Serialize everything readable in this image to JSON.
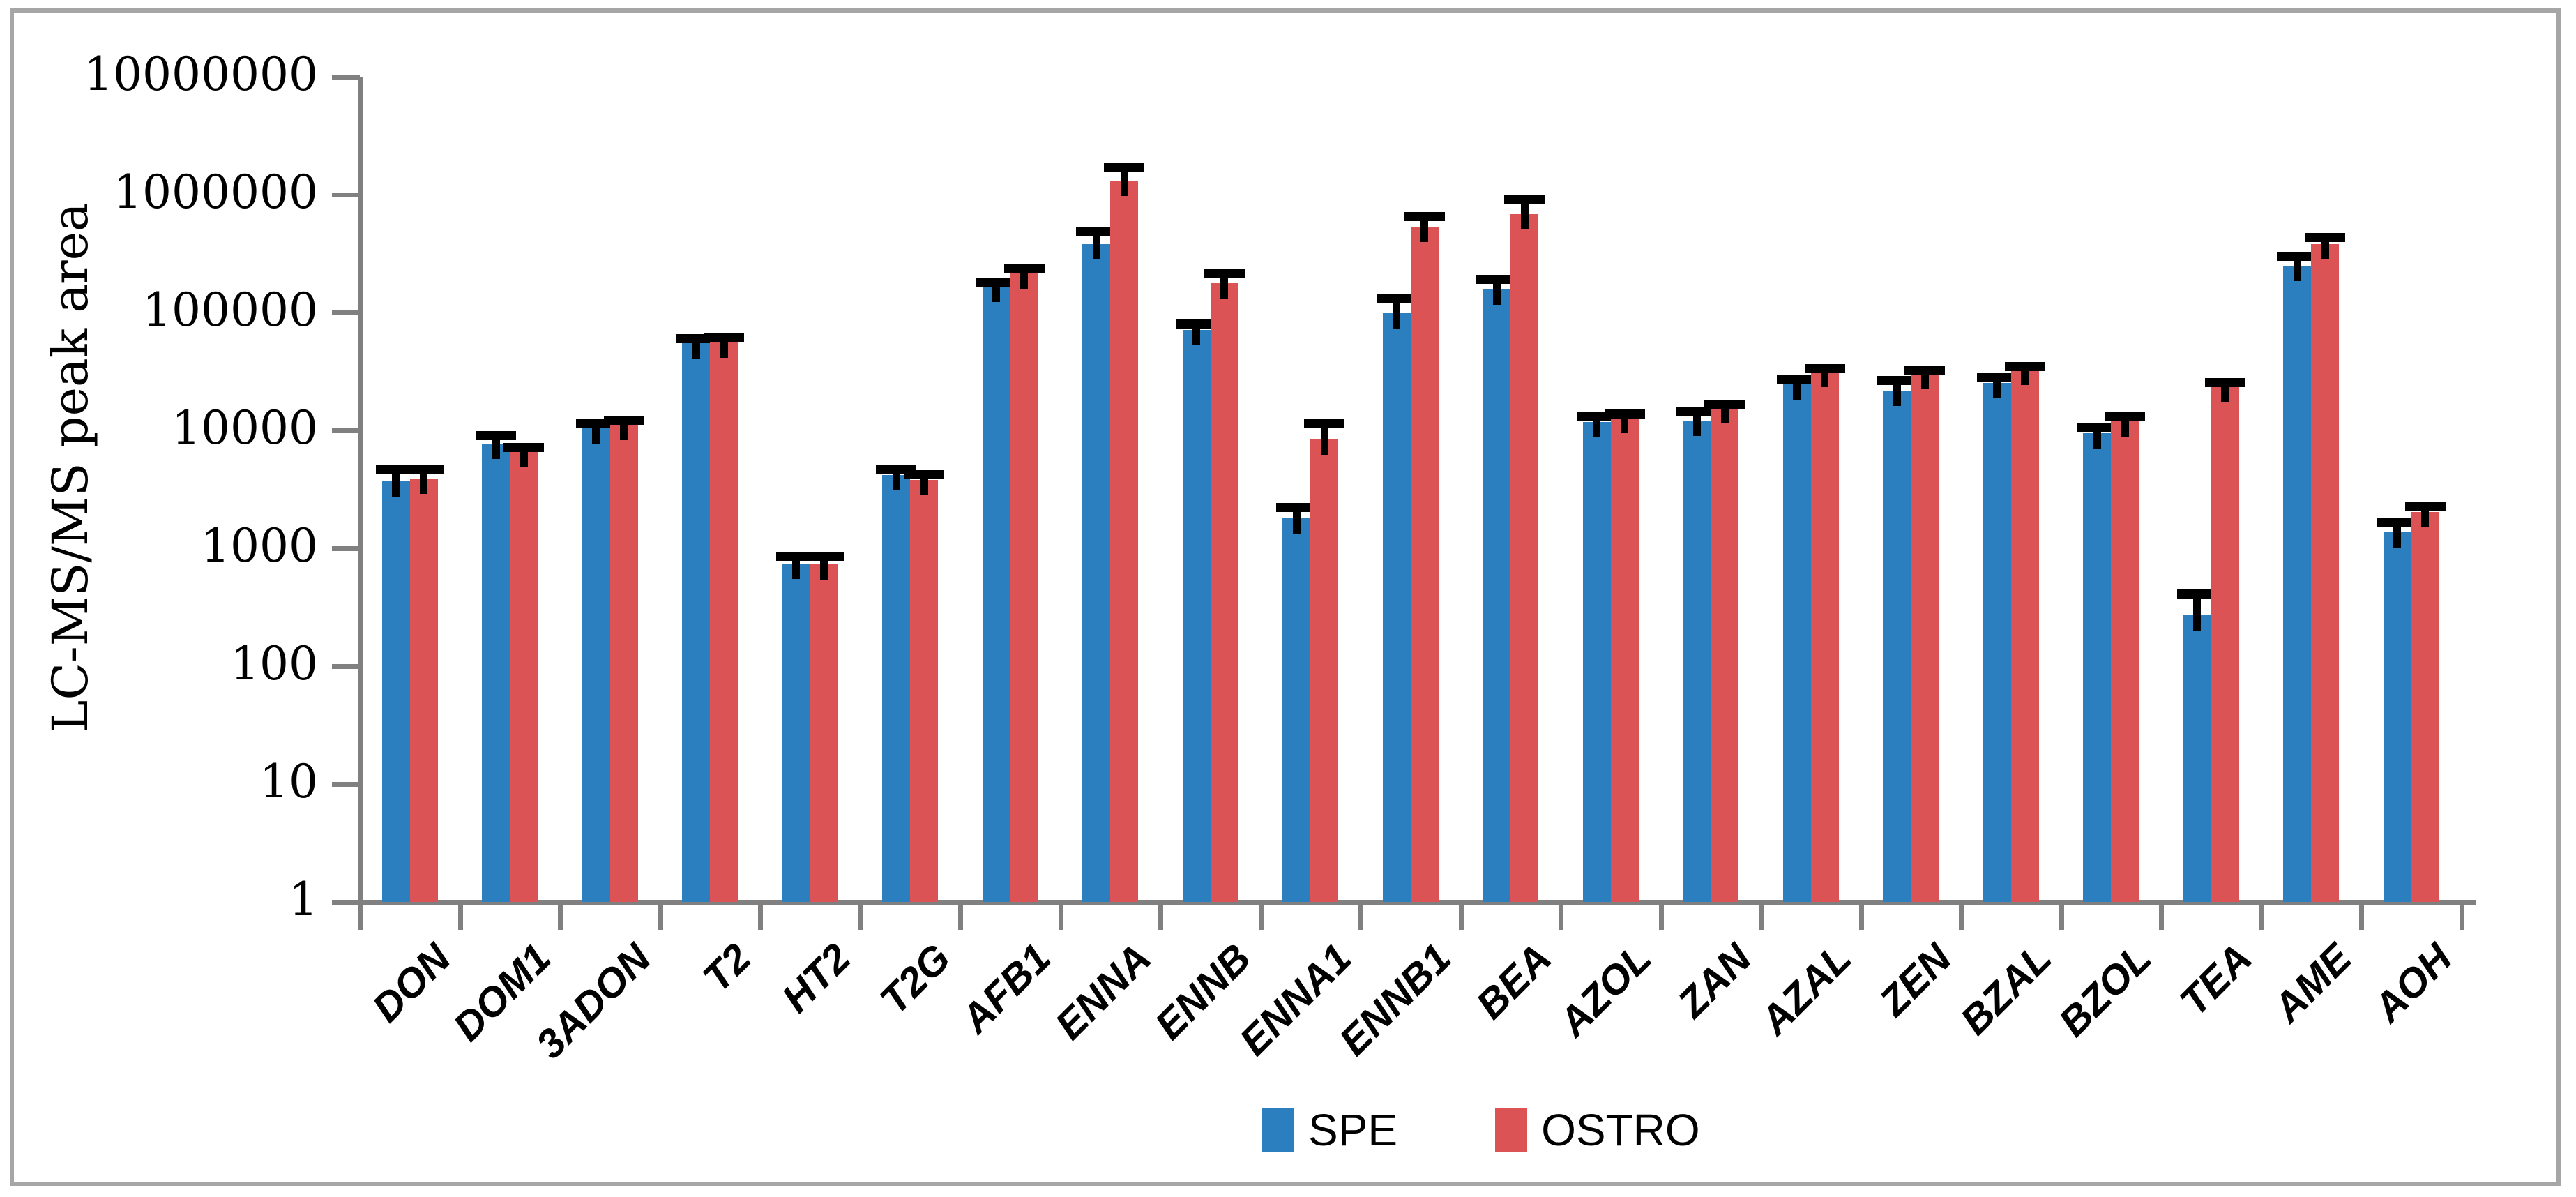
{
  "figure": {
    "background": "#ffffff",
    "border_color": "#a6a6a6",
    "axis_color": "#808080"
  },
  "chart_data": {
    "type": "bar",
    "title": "",
    "xlabel": "",
    "ylabel": "LC-MS/MS peak area",
    "yscale": "log",
    "ylim": [
      1,
      10000000
    ],
    "ytick_labels": [
      "1",
      "10",
      "100",
      "1000",
      "10000",
      "100000",
      "1000000",
      "10000000"
    ],
    "grid": false,
    "legend_position": "bottom",
    "categories": [
      "DON",
      "DOM1",
      "3ADON",
      "T2",
      "HT2",
      "T2G",
      "AFB1",
      "ENNA",
      "ENNB",
      "ENNA1",
      "ENNB1",
      "BEA",
      "AZOL",
      "ZAN",
      "AZAL",
      "ZEN",
      "BZAL",
      "BZOL",
      "TEA",
      "AME",
      "AOH"
    ],
    "series": [
      {
        "name": "SPE",
        "color": "#2b7fbe",
        "values": [
          3700,
          7700,
          10400,
          55000,
          740,
          4200,
          165000,
          380000,
          71000,
          1800,
          99000,
          157000,
          11700,
          12100,
          24500,
          21700,
          25300,
          9500,
          270,
          250000,
          1370
        ],
        "errors_upper": [
          4700,
          9000,
          11500,
          60000,
          860,
          4600,
          180000,
          485000,
          80000,
          2230,
          130000,
          190000,
          13000,
          14500,
          27000,
          26500,
          28000,
          10500,
          410,
          300000,
          1660
        ]
      },
      {
        "name": "OSTRO",
        "color": "#dc5356",
        "values": [
          3900,
          6600,
          11100,
          56000,
          730,
          3800,
          215000,
          1310000,
          177000,
          8400,
          535000,
          680000,
          12800,
          15500,
          31500,
          30500,
          32700,
          12000,
          23500,
          380000,
          2030
        ],
        "errors_upper": [
          4650,
          7200,
          12200,
          61000,
          860,
          4200,
          235000,
          1680000,
          215000,
          11600,
          650000,
          900000,
          13800,
          16500,
          33500,
          32000,
          35000,
          13200,
          25500,
          434000,
          2270
        ]
      }
    ]
  },
  "legend": {
    "spe_label": "SPE",
    "ostro_label": "OSTRO"
  }
}
